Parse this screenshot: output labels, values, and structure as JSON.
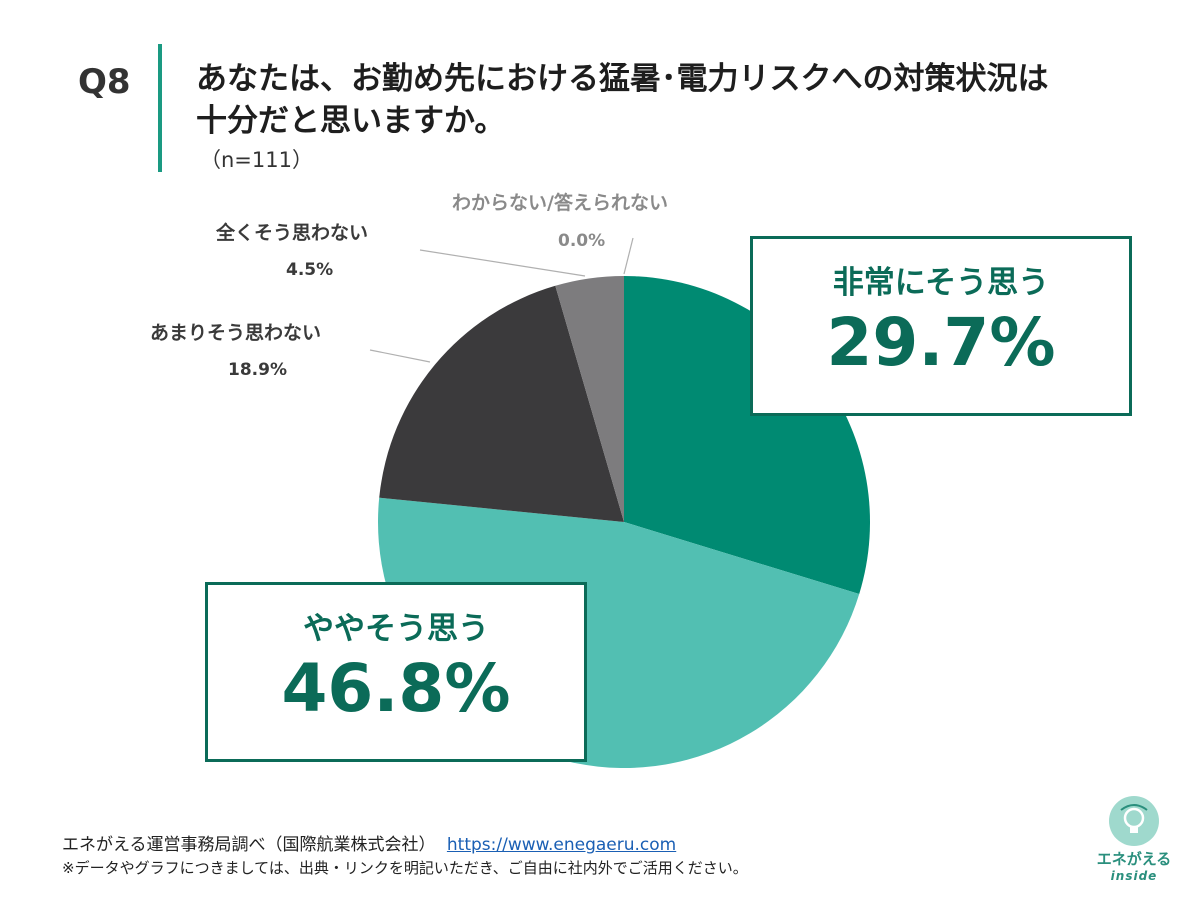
{
  "header": {
    "qnum": "Q8",
    "title_line1": "あなたは、お勤め先における猛暑･電力リスクへの対策状況は",
    "title_line2": "十分だと思いますか。",
    "n": "（n=111）"
  },
  "chart_data": {
    "type": "pie",
    "start_angle_deg": 0,
    "direction": "clockwise",
    "slices": [
      {
        "name": "非常にそう思う",
        "value": 29.7,
        "label": "29.7%",
        "color": "#008a72"
      },
      {
        "name": "ややそう思う",
        "value": 46.8,
        "label": "46.8%",
        "color": "#52bfb2"
      },
      {
        "name": "あまりそう思わない",
        "value": 18.9,
        "label": "18.9%",
        "color": "#3b3a3c"
      },
      {
        "name": "全くそう思わない",
        "value": 4.5,
        "label": "4.5%",
        "color": "#7d7c7e"
      },
      {
        "name": "わからない/答えられない",
        "value": 0.0,
        "label": "0.0%",
        "color": "#b5b5b5"
      }
    ]
  },
  "footer": {
    "source": "エネがえる運営事務局調べ（国際航業株式会社）",
    "url": "https://www.enegaeru.com",
    "note": "※データやグラフにつきましては、出典・リンクを明記いただき、ご自由に社内外でご活用ください。"
  },
  "logo": {
    "name": "エネがえる",
    "sub": "inside"
  }
}
